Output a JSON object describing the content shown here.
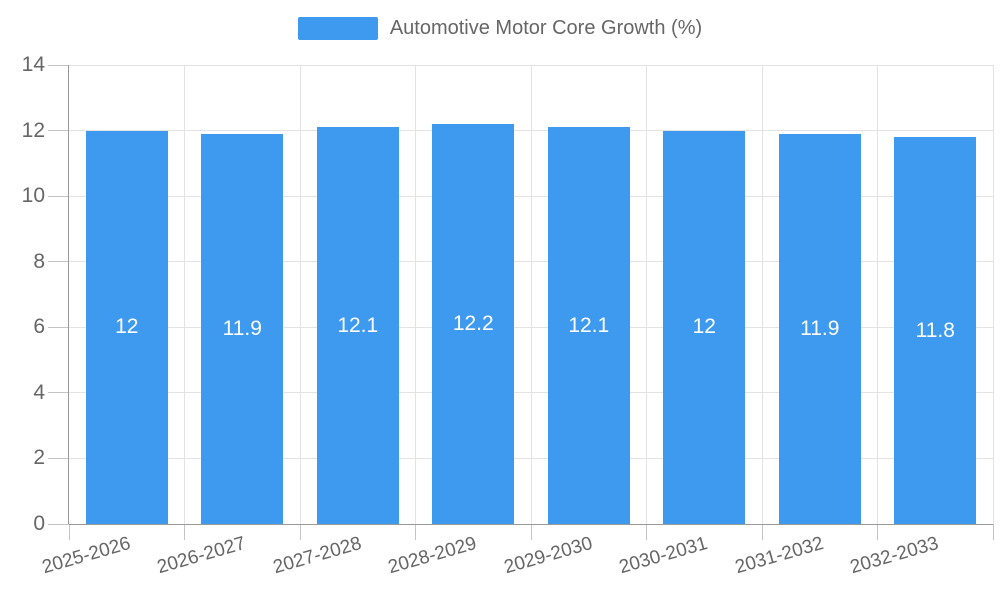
{
  "legend": {
    "label": "Automotive Motor Core Growth (%)"
  },
  "chart_data": {
    "type": "bar",
    "series_name": "Automotive Motor Core Growth (%)",
    "categories": [
      "2025-2026",
      "2026-2027",
      "2027-2028",
      "2028-2029",
      "2029-2030",
      "2030-2031",
      "2031-2032",
      "2032-2033"
    ],
    "values": [
      12,
      11.9,
      12.1,
      12.2,
      12.1,
      12,
      11.9,
      11.8
    ],
    "value_labels": [
      "12",
      "11.9",
      "12.1",
      "12.2",
      "12.1",
      "12",
      "11.9",
      "11.8"
    ],
    "ylim": [
      0,
      14
    ],
    "yticks": [
      0,
      2,
      4,
      6,
      8,
      10,
      12,
      14
    ],
    "xlabel": "",
    "ylabel": "",
    "grid": true,
    "legend_position": "top",
    "x_label_rotation_deg": -16,
    "colors": {
      "bar": "#3E9AEE",
      "value_label": "#FFFFFF",
      "grid": "#E3E3E3",
      "axis": "#999999",
      "tick": "#C4C4C4",
      "text": "#666666",
      "background": "#FFFFFF"
    }
  }
}
